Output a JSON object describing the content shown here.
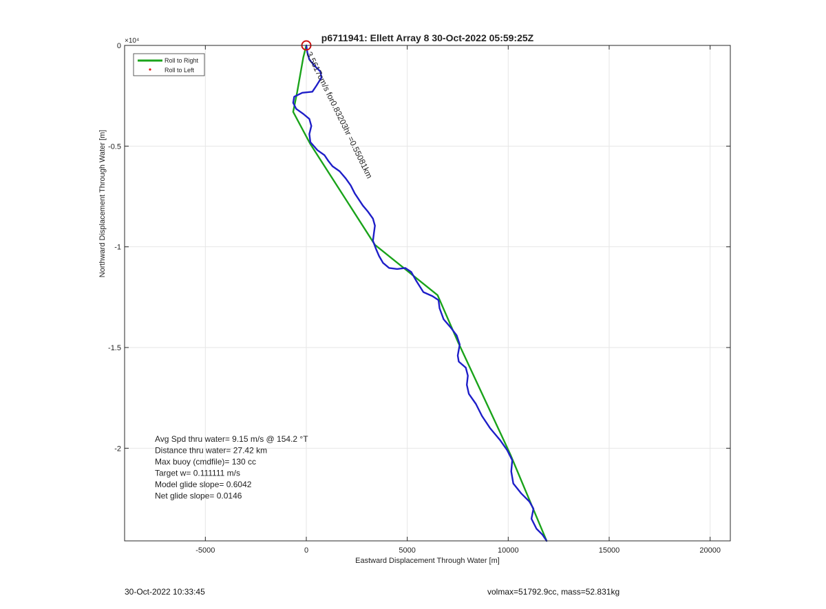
{
  "chart_data": {
    "type": "line",
    "title": "p6711941: Ellett Array 8 30-Oct-2022 05:59:25Z",
    "xlabel": "Eastward Displacement Through Water [m]",
    "ylabel": "Northward Displacement Through Water [m]",
    "xlim": [
      -9000,
      21000
    ],
    "ylim": [
      -24600,
      0
    ],
    "y_exponent_label": "×10⁴",
    "xticks": [
      -5000,
      0,
      5000,
      10000,
      15000,
      20000
    ],
    "xtick_labels": [
      "-5000",
      "0",
      "5000",
      "10000",
      "15000",
      "20000"
    ],
    "yticks": [
      0,
      -5000,
      -10000,
      -15000,
      -20000
    ],
    "ytick_labels": [
      "0",
      "-0.5",
      "-1",
      "-1.5",
      "-2"
    ],
    "grid": true,
    "legend_position": "top-left",
    "legend": [
      {
        "label": "Roll to Right",
        "color": "#1aa31a",
        "style": "line"
      },
      {
        "label": "Roll to Left",
        "color": "#e01818",
        "style": "dot"
      }
    ],
    "series": [
      {
        "name": "Roll to Right",
        "color": "#1aa31a",
        "points": [
          [
            0,
            0
          ],
          [
            -150,
            -600
          ],
          [
            -450,
            -2300
          ],
          [
            -650,
            -3300
          ],
          [
            200,
            -4900
          ],
          [
            3400,
            -9900
          ],
          [
            6500,
            -12400
          ],
          [
            7500,
            -14700
          ],
          [
            10100,
            -20300
          ],
          [
            11900,
            -24600
          ]
        ]
      },
      {
        "name": "",
        "color": "#1e1ec8",
        "points": [
          [
            0,
            0
          ],
          [
            50,
            -350
          ],
          [
            150,
            -700
          ],
          [
            400,
            -1000
          ],
          [
            700,
            -1300
          ],
          [
            750,
            -1600
          ],
          [
            500,
            -2000
          ],
          [
            300,
            -2300
          ],
          [
            -200,
            -2350
          ],
          [
            -600,
            -2550
          ],
          [
            -650,
            -2850
          ],
          [
            -500,
            -3150
          ],
          [
            -150,
            -3400
          ],
          [
            150,
            -3650
          ],
          [
            250,
            -4000
          ],
          [
            150,
            -4400
          ],
          [
            200,
            -4800
          ],
          [
            550,
            -5200
          ],
          [
            900,
            -5450
          ],
          [
            1100,
            -5750
          ],
          [
            1300,
            -6000
          ],
          [
            1650,
            -6250
          ],
          [
            1950,
            -6600
          ],
          [
            2200,
            -6950
          ],
          [
            2400,
            -7350
          ],
          [
            2600,
            -7650
          ],
          [
            2800,
            -7950
          ],
          [
            3050,
            -8250
          ],
          [
            3300,
            -8600
          ],
          [
            3400,
            -8950
          ],
          [
            3350,
            -9300
          ],
          [
            3300,
            -9700
          ],
          [
            3450,
            -10100
          ],
          [
            3600,
            -10450
          ],
          [
            3800,
            -10800
          ],
          [
            4100,
            -11050
          ],
          [
            4500,
            -11100
          ],
          [
            4900,
            -11050
          ],
          [
            5200,
            -11250
          ],
          [
            5450,
            -11700
          ],
          [
            5800,
            -12250
          ],
          [
            6250,
            -12450
          ],
          [
            6550,
            -12650
          ],
          [
            6600,
            -13050
          ],
          [
            6800,
            -13600
          ],
          [
            7150,
            -14000
          ],
          [
            7450,
            -14400
          ],
          [
            7600,
            -14850
          ],
          [
            7500,
            -15400
          ],
          [
            7550,
            -15700
          ],
          [
            7900,
            -16000
          ],
          [
            8000,
            -16400
          ],
          [
            7950,
            -16850
          ],
          [
            8050,
            -17300
          ],
          [
            8400,
            -17800
          ],
          [
            8700,
            -18400
          ],
          [
            9100,
            -19000
          ],
          [
            9600,
            -19600
          ],
          [
            9950,
            -20100
          ],
          [
            10200,
            -20600
          ],
          [
            10150,
            -21150
          ],
          [
            10250,
            -21750
          ],
          [
            10650,
            -22250
          ],
          [
            11050,
            -22650
          ],
          [
            11250,
            -23000
          ],
          [
            11150,
            -23500
          ],
          [
            11400,
            -24000
          ],
          [
            11700,
            -24300
          ],
          [
            11900,
            -24600
          ]
        ]
      }
    ],
    "start_marker": {
      "x": 0,
      "y": 0,
      "color": "#cc1010"
    },
    "annotation": "3.5617cm/s for0.83203hr =0.55081km",
    "annotation_start": {
      "x": 0,
      "y": -400
    },
    "annotation_angle": 64,
    "stats": [
      "Avg Spd thru water=  9.15 m/s @ 154.2 °T",
      "Distance thru water= 27.42 km",
      "Max buoy (cmdfile)= 130 cc",
      "Target w= 0.111111 m/s",
      "Model glide slope= 0.6042",
      "Net glide slope= 0.0146"
    ]
  },
  "footer": {
    "timestamp": "30-Oct-2022 10:33:45",
    "volmax": "volmax=51792.9cc, mass=52.831kg"
  }
}
